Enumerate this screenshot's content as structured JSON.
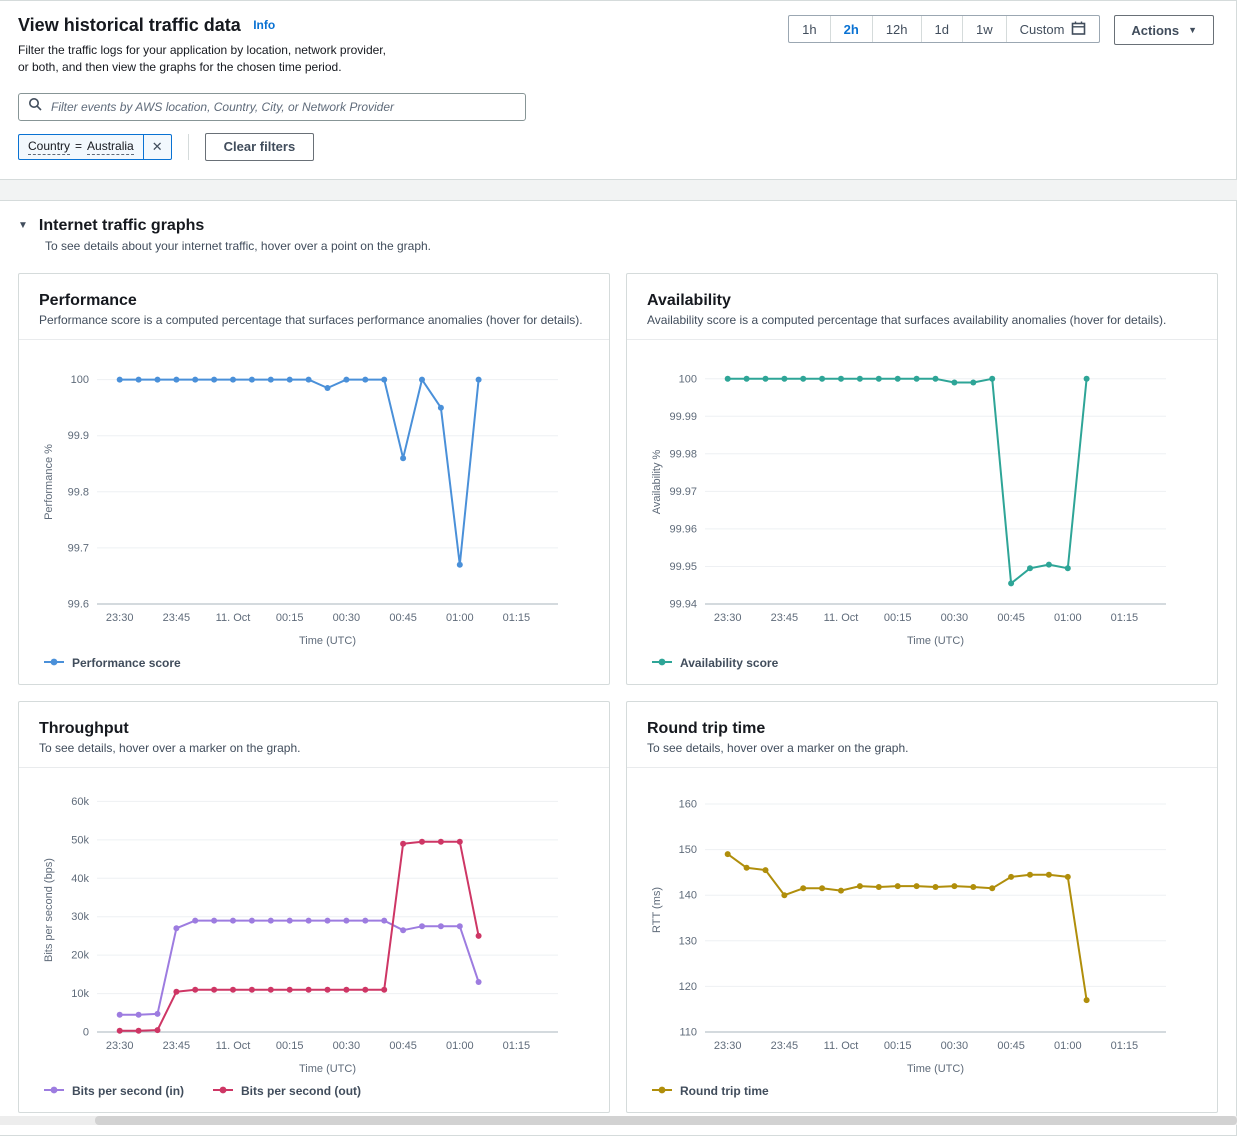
{
  "page": {
    "title": "View historical traffic data",
    "info_label": "Info",
    "description": "Filter the traffic logs for your application by location, network provider, or both, and then view the graphs for the chosen time period."
  },
  "time_range": {
    "options": [
      "1h",
      "2h",
      "12h",
      "1d",
      "1w",
      "Custom"
    ],
    "selected": "2h",
    "custom_icon": "calendar-icon"
  },
  "actions": {
    "label": "Actions",
    "caret": "▼"
  },
  "filter_bar": {
    "placeholder": "Filter events by AWS location, Country, City, or Network Provider",
    "search_icon": "search-icon",
    "token": {
      "key": "Country",
      "operator": "=",
      "value": "Australia",
      "close_icon": "close-icon"
    },
    "clear_label": "Clear filters"
  },
  "section": {
    "collapse_caret": "▼",
    "title": "Internet traffic graphs",
    "description": "To see details about your internet traffic, hover over a point on the graph."
  },
  "chart_data": [
    {
      "type": "line",
      "title": "Performance",
      "subtitle": "Performance score is a computed percentage that surfaces performance anomalies (hover for details).",
      "xlabel": "Time (UTC)",
      "ylabel": "Performance %",
      "x_domain": [
        -6,
        116
      ],
      "x_tick_values": [
        0,
        15,
        30,
        45,
        60,
        75,
        90,
        105
      ],
      "x_tick_labels": [
        "23:30",
        "23:45",
        "11. Oct",
        "00:15",
        "00:30",
        "00:45",
        "01:00",
        "01:15"
      ],
      "y_tick_values": [
        99.6,
        99.7,
        99.8,
        99.9,
        100
      ],
      "y_tick_labels": [
        "99.6",
        "99.7",
        "99.8",
        "99.9",
        "100"
      ],
      "ylim": [
        99.6,
        100.035
      ],
      "x": [
        0,
        5,
        10,
        15,
        20,
        25,
        30,
        35,
        40,
        45,
        50,
        55,
        60,
        65,
        70,
        75,
        80,
        85,
        90,
        95
      ],
      "series": [
        {
          "name": "Performance score",
          "color": "#4a90d9",
          "values": [
            100,
            100,
            100,
            100,
            100,
            100,
            100,
            100,
            100,
            100,
            100,
            99.985,
            100,
            100,
            100,
            99.86,
            100,
            99.95,
            99.67,
            100
          ]
        }
      ]
    },
    {
      "type": "line",
      "title": "Availability",
      "subtitle": "Availability score is a computed percentage that surfaces availability anomalies (hover for details).",
      "xlabel": "Time (UTC)",
      "ylabel": "Availability %",
      "x_domain": [
        -6,
        116
      ],
      "x_tick_values": [
        0,
        15,
        30,
        45,
        60,
        75,
        90,
        105
      ],
      "x_tick_labels": [
        "23:30",
        "23:45",
        "11. Oct",
        "00:15",
        "00:30",
        "00:45",
        "01:00",
        "01:15"
      ],
      "y_tick_values": [
        99.94,
        99.95,
        99.96,
        99.97,
        99.98,
        99.99,
        100
      ],
      "y_tick_labels": [
        "99.94",
        "99.95",
        "99.96",
        "99.97",
        "99.98",
        "99.99",
        "100"
      ],
      "ylim": [
        99.94,
        100.005
      ],
      "x": [
        0,
        5,
        10,
        15,
        20,
        25,
        30,
        35,
        40,
        45,
        50,
        55,
        60,
        65,
        70,
        75,
        80,
        85,
        90,
        95
      ],
      "series": [
        {
          "name": "Availability score",
          "color": "#2ea597",
          "values": [
            100,
            100,
            100,
            100,
            100,
            100,
            100,
            100,
            100,
            100,
            100,
            100,
            99.999,
            99.999,
            100,
            99.9455,
            99.9495,
            99.9505,
            99.9495,
            100
          ]
        }
      ]
    },
    {
      "type": "line",
      "title": "Throughput",
      "subtitle": "To see details, hover over a marker on the graph.",
      "xlabel": "Time (UTC)",
      "ylabel": "Bits per second (bps)",
      "x_domain": [
        -6,
        116
      ],
      "x_tick_values": [
        0,
        15,
        30,
        45,
        60,
        75,
        90,
        105
      ],
      "x_tick_labels": [
        "23:30",
        "23:45",
        "11. Oct",
        "00:15",
        "00:30",
        "00:45",
        "01:00",
        "01:15"
      ],
      "y_tick_values": [
        0,
        10000,
        20000,
        30000,
        40000,
        50000,
        60000
      ],
      "y_tick_labels": [
        "0",
        "10k",
        "20k",
        "30k",
        "40k",
        "50k",
        "60k"
      ],
      "ylim": [
        0,
        63500
      ],
      "x": [
        0,
        5,
        10,
        15,
        20,
        25,
        30,
        35,
        40,
        45,
        50,
        55,
        60,
        65,
        70,
        75,
        80,
        85,
        90,
        95
      ],
      "series": [
        {
          "name": "Bits per second (in)",
          "color": "#9d7ce0",
          "values": [
            4500,
            4500,
            4700,
            27000,
            29000,
            29000,
            29000,
            29000,
            29000,
            29000,
            29000,
            29000,
            29000,
            29000,
            29000,
            26500,
            27500,
            27500,
            27500,
            13000
          ]
        },
        {
          "name": "Bits per second (out)",
          "color": "#ce3665",
          "values": [
            300,
            300,
            500,
            10500,
            11000,
            11000,
            11000,
            11000,
            11000,
            11000,
            11000,
            11000,
            11000,
            11000,
            11000,
            49000,
            49500,
            49500,
            49500,
            25000
          ]
        }
      ]
    },
    {
      "type": "line",
      "title": "Round trip time",
      "subtitle": "To see details, hover over a marker on the graph.",
      "xlabel": "Time (UTC)",
      "ylabel": "RTT (ms)",
      "x_domain": [
        -6,
        116
      ],
      "x_tick_values": [
        0,
        15,
        30,
        45,
        60,
        75,
        90,
        105
      ],
      "x_tick_labels": [
        "23:30",
        "23:45",
        "11. Oct",
        "00:15",
        "00:30",
        "00:45",
        "01:00",
        "01:15"
      ],
      "y_tick_values": [
        110,
        120,
        130,
        140,
        150,
        160
      ],
      "y_tick_labels": [
        "110",
        "120",
        "130",
        "140",
        "150",
        "160"
      ],
      "ylim": [
        110,
        163.5
      ],
      "x": [
        0,
        5,
        10,
        15,
        20,
        25,
        30,
        35,
        40,
        45,
        50,
        55,
        60,
        65,
        70,
        75,
        80,
        85,
        90,
        95
      ],
      "series": [
        {
          "name": "Round trip time",
          "color": "#b08e0b",
          "values": [
            149,
            146,
            145.5,
            140,
            141.5,
            141.5,
            141,
            142,
            141.8,
            142,
            142,
            141.8,
            142,
            141.8,
            141.5,
            144,
            144.5,
            144.5,
            144,
            117
          ]
        }
      ]
    }
  ]
}
